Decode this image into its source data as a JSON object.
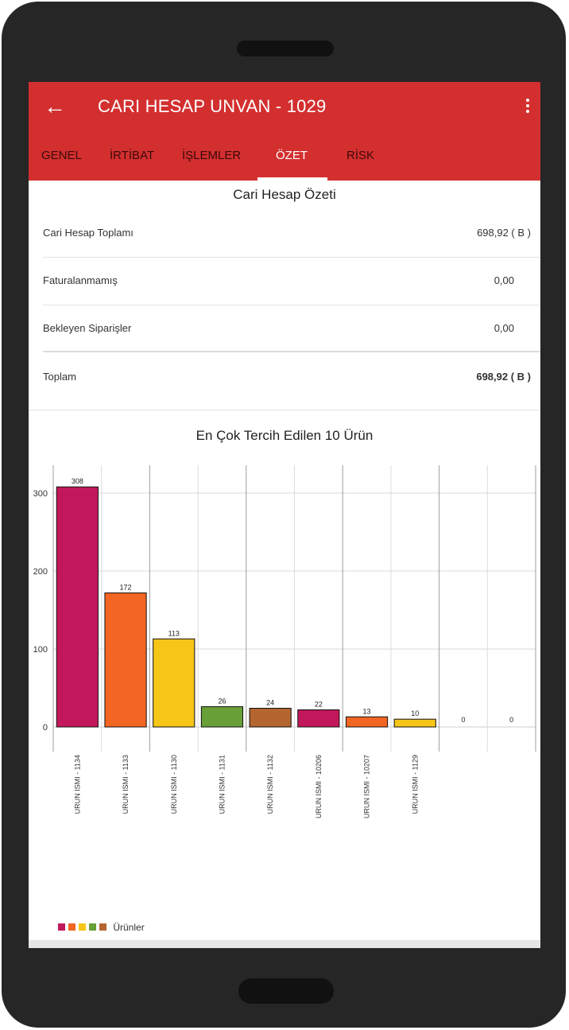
{
  "appbar": {
    "title": "CARI HESAP UNVAN - 1029",
    "back_icon": "arrow-back-icon",
    "more_icon": "more-vert-icon",
    "color": "#d32f2f"
  },
  "tabs": [
    {
      "label": "GENEL"
    },
    {
      "label": "İRTİBAT"
    },
    {
      "label": "İŞLEMLER"
    },
    {
      "label": "ÖZET",
      "active": true
    },
    {
      "label": "RİSK"
    }
  ],
  "summary": {
    "title": "Cari Hesap Özeti",
    "rows": [
      {
        "label": "Cari Hesap Toplamı",
        "value": "698,92 ( B )"
      },
      {
        "label": "Faturalanmamış",
        "value": "0,00"
      },
      {
        "label": "Bekleyen Siparişler",
        "value": "0,00"
      }
    ],
    "total": {
      "label": "Toplam",
      "value": "698,92 ( B )"
    }
  },
  "chart_title": "En Çok Tercih Edilen 10 Ürün",
  "chart_data": {
    "type": "bar",
    "title": "En Çok Tercih Edilen 10 Ürün",
    "categories": [
      "URUN ISMI - 1134",
      "URUN ISMI - 1133",
      "URUN ISMI - 1130",
      "URUN ISMI - 1131",
      "URUN ISMI - 1132",
      "URUN ISMI - 10206",
      "URUN ISMI - 10207",
      "URUN ISMI - 1129",
      "",
      ""
    ],
    "values": [
      308,
      172,
      113,
      26,
      24,
      22,
      13,
      10,
      0,
      0
    ],
    "bar_colors": [
      "#c2185b",
      "#f26522",
      "#f5c518",
      "#689f38",
      "#b5652f",
      "#c2185b",
      "#f26522",
      "#f5c518",
      "#689f38",
      "#b5652f"
    ],
    "yticks": [
      0,
      100,
      200,
      300
    ],
    "ylim": [
      -30,
      340
    ],
    "legend": {
      "label": "Ürünler",
      "position": "bottom-left",
      "colors": [
        "#c2185b",
        "#f26522",
        "#f5c518",
        "#689f38",
        "#b5652f"
      ]
    },
    "grid": true
  }
}
